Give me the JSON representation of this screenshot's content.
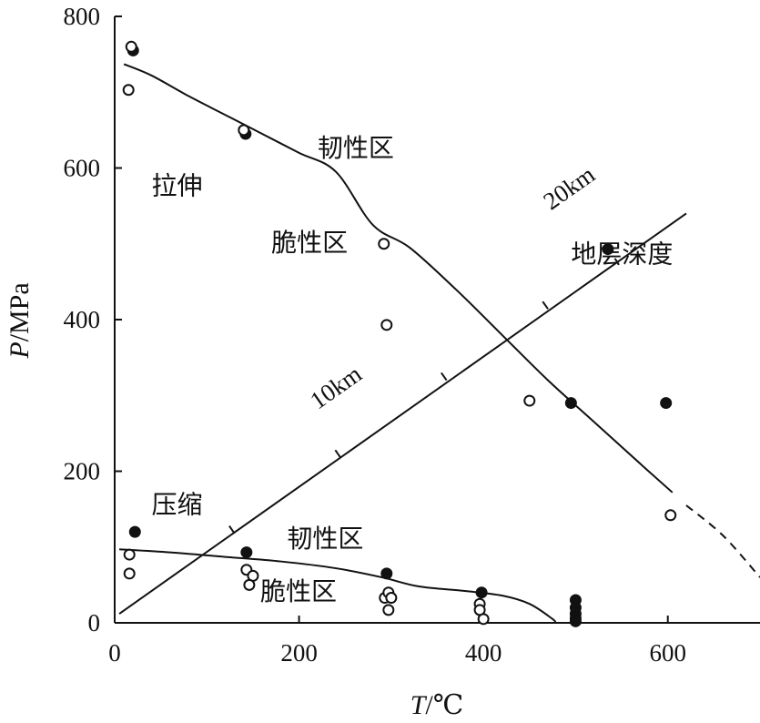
{
  "chart_data": {
    "type": "scatter",
    "title": "",
    "xlabel": {
      "var": "T",
      "sep": "/",
      "unit": "℃"
    },
    "ylabel": {
      "var": "P",
      "sep": "/",
      "unit": "MPa"
    },
    "xlim": [
      0,
      700
    ],
    "ylim": [
      0,
      800
    ],
    "xticks": [
      0,
      200,
      400,
      600
    ],
    "yticks": [
      0,
      200,
      400,
      600,
      800
    ],
    "grid": false,
    "series": [
      {
        "marker": "filled",
        "points": [
          [
            20,
            755
          ],
          [
            142,
            645
          ],
          [
            535,
            493
          ],
          [
            495,
            290
          ],
          [
            598,
            290
          ],
          [
            22,
            120
          ],
          [
            143,
            93
          ],
          [
            295,
            65
          ],
          [
            398,
            40
          ],
          [
            500,
            30
          ],
          [
            500,
            20
          ],
          [
            500,
            12
          ],
          [
            500,
            6
          ],
          [
            500,
            2
          ]
        ]
      },
      {
        "marker": "open",
        "points": [
          [
            18,
            760
          ],
          [
            15,
            703
          ],
          [
            140,
            650
          ],
          [
            292,
            500
          ],
          [
            295,
            393
          ],
          [
            450,
            293
          ],
          [
            603,
            142
          ],
          [
            16,
            90
          ],
          [
            16,
            65
          ],
          [
            143,
            70
          ],
          [
            150,
            62
          ],
          [
            146,
            50
          ],
          [
            293,
            33
          ],
          [
            297,
            40
          ],
          [
            300,
            33
          ],
          [
            297,
            17
          ],
          [
            396,
            25
          ],
          [
            396,
            17
          ],
          [
            400,
            5
          ]
        ]
      }
    ],
    "curves": [
      {
        "style": "solid",
        "points": [
          [
            10,
            737
          ],
          [
            40,
            722
          ],
          [
            80,
            695
          ],
          [
            120,
            670
          ],
          [
            160,
            645
          ],
          [
            200,
            620
          ],
          [
            240,
            595
          ],
          [
            280,
            525
          ],
          [
            320,
            495
          ],
          [
            370,
            440
          ],
          [
            420,
            380
          ],
          [
            470,
            320
          ],
          [
            520,
            265
          ],
          [
            570,
            210
          ],
          [
            605,
            172
          ]
        ]
      },
      {
        "style": "dashed",
        "points": [
          [
            620,
            155
          ],
          [
            660,
            115
          ],
          [
            700,
            60
          ]
        ]
      },
      {
        "style": "solid",
        "points": [
          [
            5,
            97
          ],
          [
            60,
            93
          ],
          [
            120,
            87
          ],
          [
            180,
            81
          ],
          [
            240,
            72
          ],
          [
            290,
            60
          ],
          [
            330,
            48
          ],
          [
            380,
            42
          ],
          [
            420,
            36
          ],
          [
            450,
            25
          ],
          [
            475,
            5
          ],
          [
            478,
            0
          ]
        ]
      }
    ],
    "depth_line": {
      "from": [
        5,
        12
      ],
      "to": [
        620,
        540
      ],
      "ticks": [
        [
          130,
          118
        ],
        [
          245,
          218
        ],
        [
          360,
          320
        ],
        [
          470,
          414
        ]
      ],
      "labels": [
        {
          "text": "10km",
          "at": [
            245,
            302
          ]
        },
        {
          "text": "20km",
          "at": [
            498,
            565
          ]
        }
      ]
    },
    "annotations": [
      {
        "text": "拉伸",
        "at": [
          40,
          565
        ]
      },
      {
        "text": "韧性区",
        "at": [
          220,
          615
        ]
      },
      {
        "text": "脆性区",
        "at": [
          170,
          490
        ]
      },
      {
        "text": "地层深度",
        "at": [
          495,
          475
        ]
      },
      {
        "text": "压缩",
        "at": [
          40,
          145
        ]
      },
      {
        "text": "韧性区",
        "at": [
          187,
          100
        ]
      },
      {
        "text": "脆性区",
        "at": [
          158,
          30
        ]
      }
    ]
  }
}
